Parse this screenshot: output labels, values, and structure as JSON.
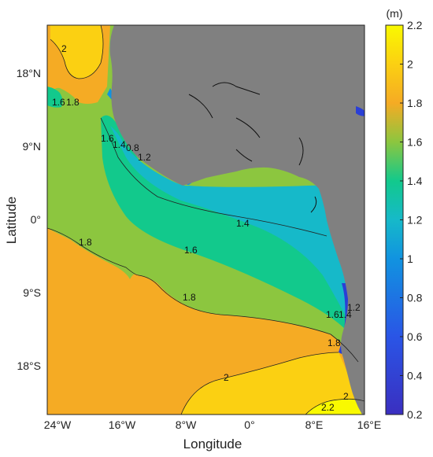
{
  "map": {
    "xlabel": "Longitude",
    "ylabel": "Latitude",
    "x_ticks": [
      "24°W",
      "16°W",
      "8°W",
      "0°",
      "8°E",
      "16°E"
    ],
    "y_ticks": [
      "18°N",
      "9°N",
      "0°",
      "9°S",
      "18°S"
    ],
    "contour_labels": [
      "2",
      "1.8",
      "1.6",
      "1.6",
      "1.4",
      "0.8",
      "1.2",
      "1.4",
      "1.6",
      "1.8",
      "1.6",
      "1.4",
      "1.2",
      "1.8",
      "2",
      "2",
      "2.2"
    ]
  },
  "colorbar": {
    "unit": "(m)",
    "ticks": [
      "2.2",
      "2",
      "1.8",
      "1.6",
      "1.4",
      "1.2",
      "1",
      "0.8",
      "0.6",
      "0.4",
      "0.2"
    ],
    "range": [
      0.2,
      2.2
    ]
  },
  "colors": {
    "land": "#808080",
    "c_2_2": "#f9f900",
    "c_2_0": "#fbd012",
    "c_1_8": "#f5ab24",
    "c_1_6": "#8cc63f",
    "c_1_4": "#12c98c",
    "c_1_2": "#16b9c9",
    "c_1_0": "#1193e0",
    "c_low": "#2a3fd6"
  }
}
